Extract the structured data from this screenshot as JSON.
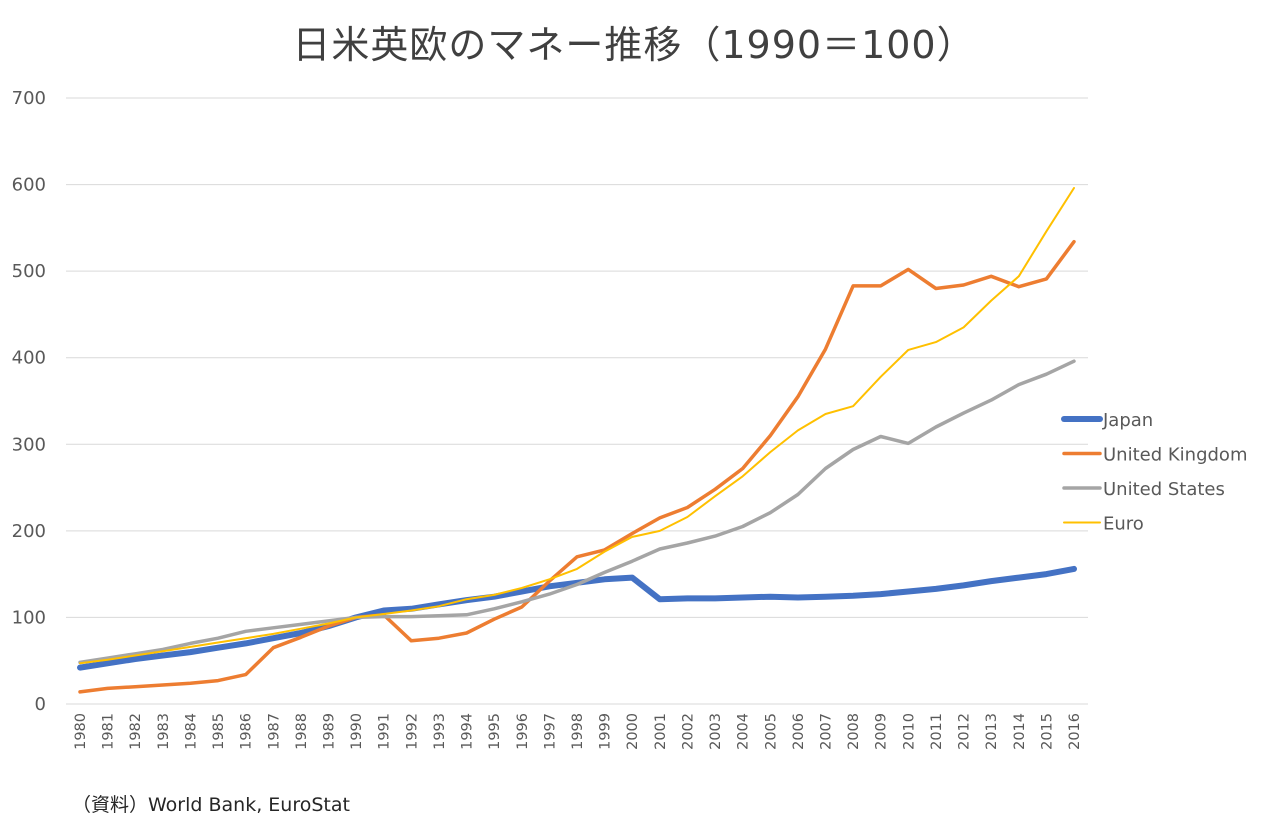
{
  "title": "日米英欧のマネー推移（1990＝100）",
  "source": "（資料）World Bank, EuroStat",
  "chart_data": {
    "type": "line",
    "title": "日米英欧のマネー推移（1990＝100）",
    "xlabel": "",
    "ylabel": "",
    "ylim": [
      0,
      700
    ],
    "yticks": [
      0,
      100,
      200,
      300,
      400,
      500,
      600,
      700
    ],
    "grid": true,
    "legend_position": "right",
    "categories": [
      "1980",
      "1981",
      "1982",
      "1983",
      "1984",
      "1985",
      "1986",
      "1987",
      "1988",
      "1989",
      "1990",
      "1991",
      "1992",
      "1993",
      "1994",
      "1995",
      "1996",
      "1997",
      "1998",
      "1999",
      "2000",
      "2001",
      "2002",
      "2003",
      "2004",
      "2005",
      "2006",
      "2007",
      "2008",
      "2009",
      "2010",
      "2011",
      "2012",
      "2013",
      "2014",
      "2015",
      "2016"
    ],
    "series": [
      {
        "name": "Japan",
        "color": "#4472C4",
        "width": 6,
        "values": [
          42,
          47,
          52,
          56,
          60,
          65,
          70,
          76,
          82,
          90,
          100,
          108,
          110,
          115,
          120,
          124,
          130,
          136,
          140,
          144,
          146,
          121,
          122,
          122,
          123,
          124,
          123,
          124,
          125,
          127,
          130,
          133,
          137,
          142,
          146,
          150,
          156
        ]
      },
      {
        "name": "United Kingdom",
        "color": "#ED7D31",
        "width": 3.5,
        "values": [
          14,
          18,
          20,
          22,
          24,
          27,
          34,
          65,
          77,
          90,
          100,
          103,
          73,
          76,
          82,
          98,
          112,
          142,
          170,
          178,
          197,
          215,
          227,
          248,
          272,
          310,
          355,
          410,
          483,
          483,
          502,
          480,
          484,
          494,
          482,
          491,
          534
        ]
      },
      {
        "name": "United States",
        "color": "#A5A5A5",
        "width": 3.5,
        "values": [
          48,
          53,
          58,
          63,
          70,
          76,
          84,
          88,
          92,
          96,
          100,
          101,
          101,
          102,
          103,
          110,
          118,
          127,
          138,
          152,
          165,
          179,
          186,
          194,
          205,
          221,
          242,
          272,
          294,
          309,
          301,
          320,
          336,
          351,
          369,
          381,
          396
        ]
      },
      {
        "name": "Euro",
        "color": "#FFC000",
        "width": 2,
        "values": [
          47,
          51,
          56,
          61,
          66,
          71,
          76,
          81,
          87,
          93,
          100,
          104,
          108,
          113,
          121,
          126,
          134,
          144,
          156,
          176,
          193,
          200,
          216,
          240,
          263,
          291,
          316,
          335,
          344,
          378,
          409,
          418,
          435,
          466,
          494,
          546,
          596
        ]
      }
    ]
  }
}
